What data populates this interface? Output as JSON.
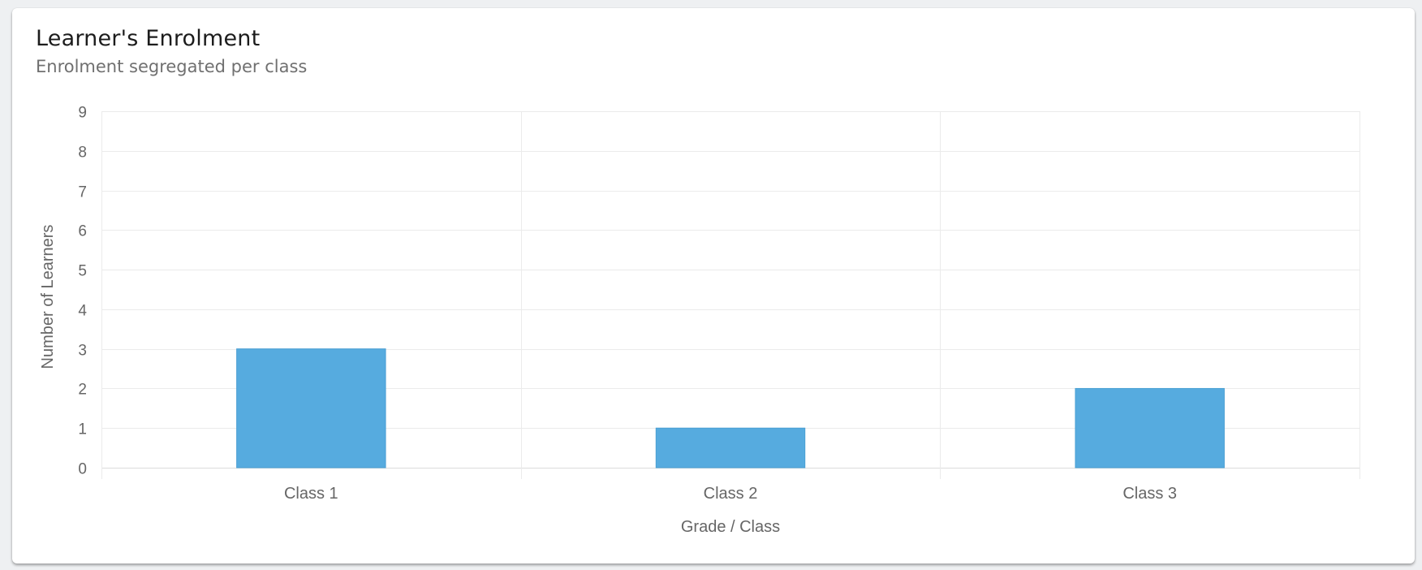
{
  "card": {
    "title": "Learner's Enrolment",
    "subtitle": "Enrolment segregated per class"
  },
  "chart_data": {
    "type": "bar",
    "categories": [
      "Class 1",
      "Class 2",
      "Class 3"
    ],
    "values": [
      3,
      1,
      2
    ],
    "xlabel": "Grade / Class",
    "ylabel": "Number of Learners",
    "ylim": [
      0,
      9
    ],
    "yticks": [
      0,
      1,
      2,
      3,
      4,
      5,
      6,
      7,
      8,
      9
    ],
    "grid": true,
    "legend": "none",
    "bar_color": "#56abdf",
    "bar_border_color": "#4a9fd3",
    "grid_color": "#ebebeb"
  }
}
